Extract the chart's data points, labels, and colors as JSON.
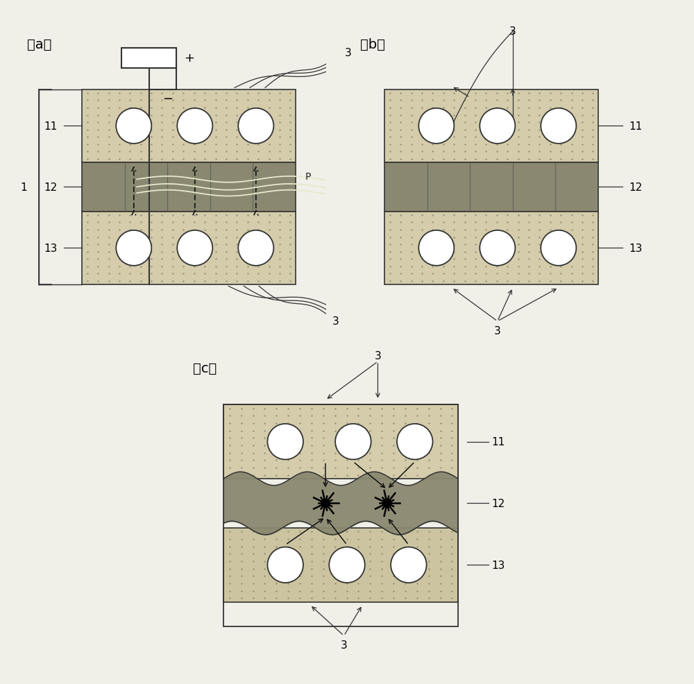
{
  "bg_color": "#f0efe8",
  "layer11_color": "#d8d0b0",
  "layer12_color": "#909080",
  "layer13_color": "#d0c8a8",
  "circle_fc": "#ffffff",
  "circle_ec": "#333333",
  "line_color": "#333333",
  "label_fontsize": 11,
  "title_fontsize": 14,
  "title_a": "（a）",
  "title_b": "（b）",
  "title_c": "（c）"
}
